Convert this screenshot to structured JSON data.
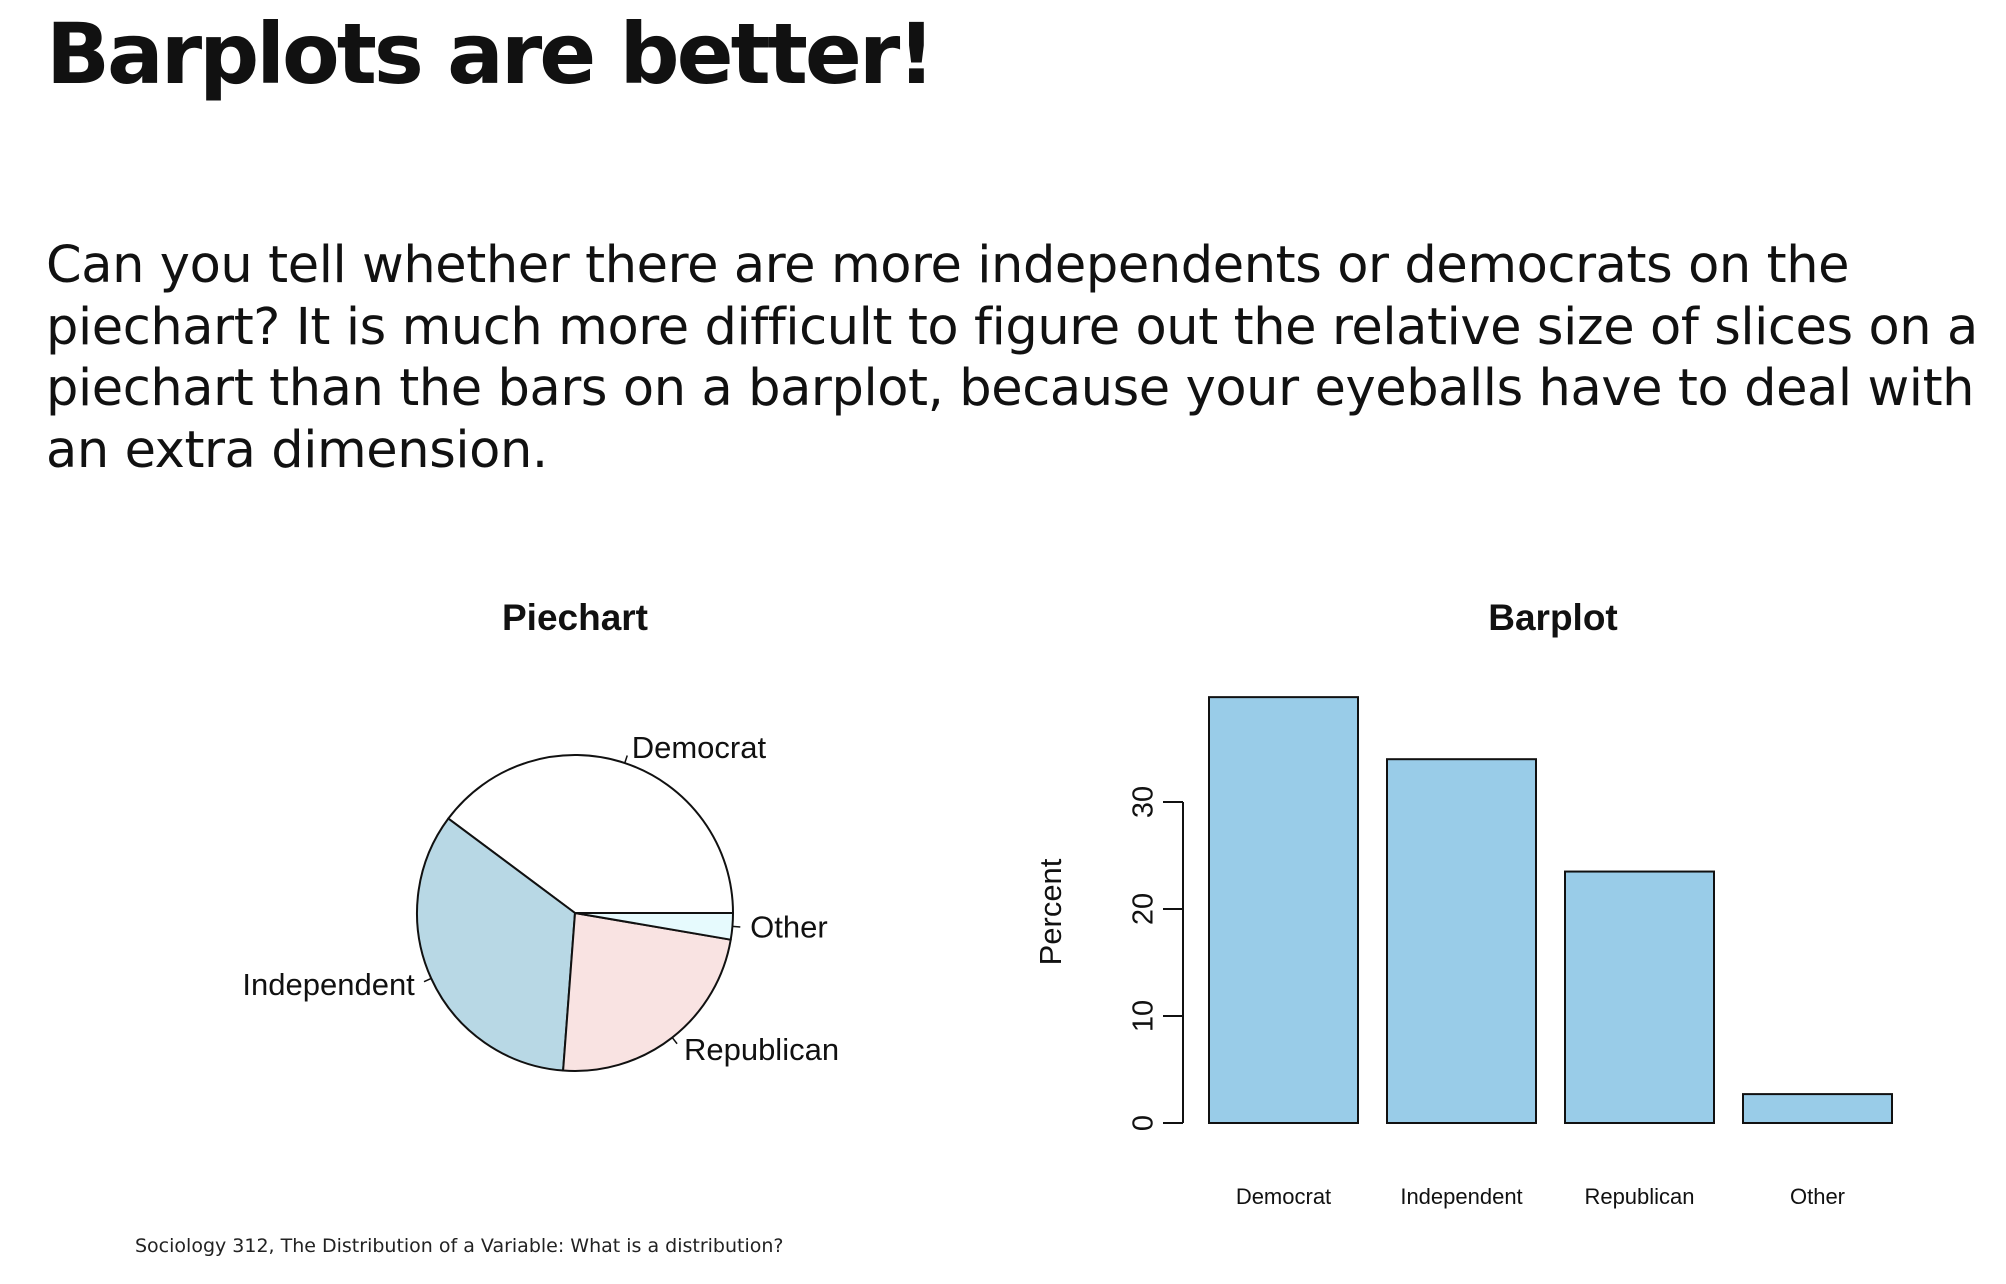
{
  "slide": {
    "title": "Barplots are better!",
    "body": "Can you tell whether there are more independents or democrats on the piechart? It is much more difficult to figure out the relative size of slices on a piechart than the bars on a barplot, because your eyeballs have to deal with an extra dimension.",
    "footer": "Sociology 312, The Distribution of a Variable: What is a distribution?"
  },
  "chart_data": [
    {
      "type": "pie",
      "title": "Piechart",
      "categories": [
        "Democrat",
        "Independent",
        "Republican",
        "Other"
      ],
      "values": [
        39.8,
        34.0,
        23.5,
        2.7
      ],
      "colors": [
        "#ffffff",
        "#b8d8e5",
        "#f9e3e2",
        "#e6fafd"
      ],
      "direction": "counterclockwise",
      "start": "3 o'clock"
    },
    {
      "type": "bar",
      "title": "Barplot",
      "categories": [
        "Democrat",
        "Independent",
        "Republican",
        "Other"
      ],
      "values": [
        39.8,
        34.0,
        23.5,
        2.7
      ],
      "ylabel": "Percent",
      "xlabel": "",
      "yticks": [
        "0",
        "10",
        "20",
        "30"
      ],
      "ylim": [
        0,
        40
      ],
      "bar_color": "#99cce8"
    }
  ]
}
